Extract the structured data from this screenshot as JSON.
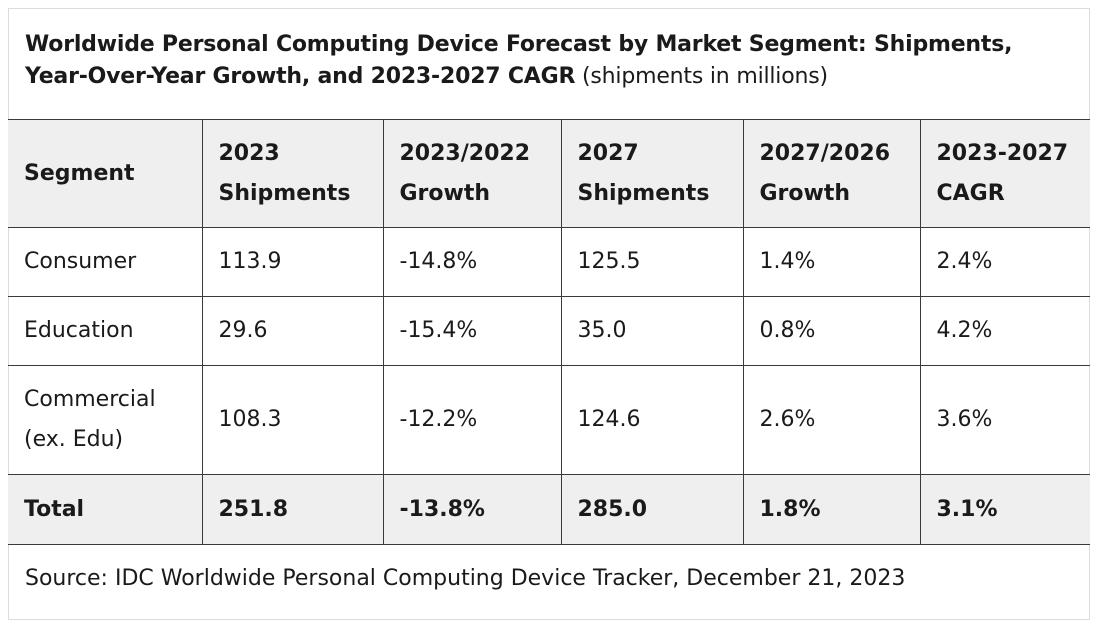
{
  "chart_data": {
    "type": "table",
    "title": "Worldwide Personal Computing Device Forecast by Market Segment: Shipments, Year-Over-Year Growth, and 2023-2027 CAGR",
    "subtitle": "(shipments in millions)",
    "columns": [
      [
        "Segment"
      ],
      [
        "2023",
        "Shipments"
      ],
      [
        "2023/2022",
        "Growth"
      ],
      [
        "2027",
        "Shipments"
      ],
      [
        "2027/2026",
        "Growth"
      ],
      [
        "2023-2027",
        "CAGR"
      ]
    ],
    "rows": [
      {
        "segment": [
          "Consumer"
        ],
        "cells": [
          "113.9",
          "-14.8%",
          "125.5",
          "1.4%",
          "2.4%"
        ]
      },
      {
        "segment": [
          "Education"
        ],
        "cells": [
          "29.6",
          "-15.4%",
          "35.0",
          "0.8%",
          "4.2%"
        ]
      },
      {
        "segment": [
          "Commercial",
          "(ex. Edu)"
        ],
        "cells": [
          "108.3",
          "-12.2%",
          "124.6",
          "2.6%",
          "3.6%"
        ]
      }
    ],
    "total": {
      "segment": "Total",
      "cells": [
        "251.8",
        "-13.8%",
        "285.0",
        "1.8%",
        "3.1%"
      ]
    },
    "source": "Source: IDC Worldwide Personal Computing Device Tracker, December 21, 2023"
  }
}
